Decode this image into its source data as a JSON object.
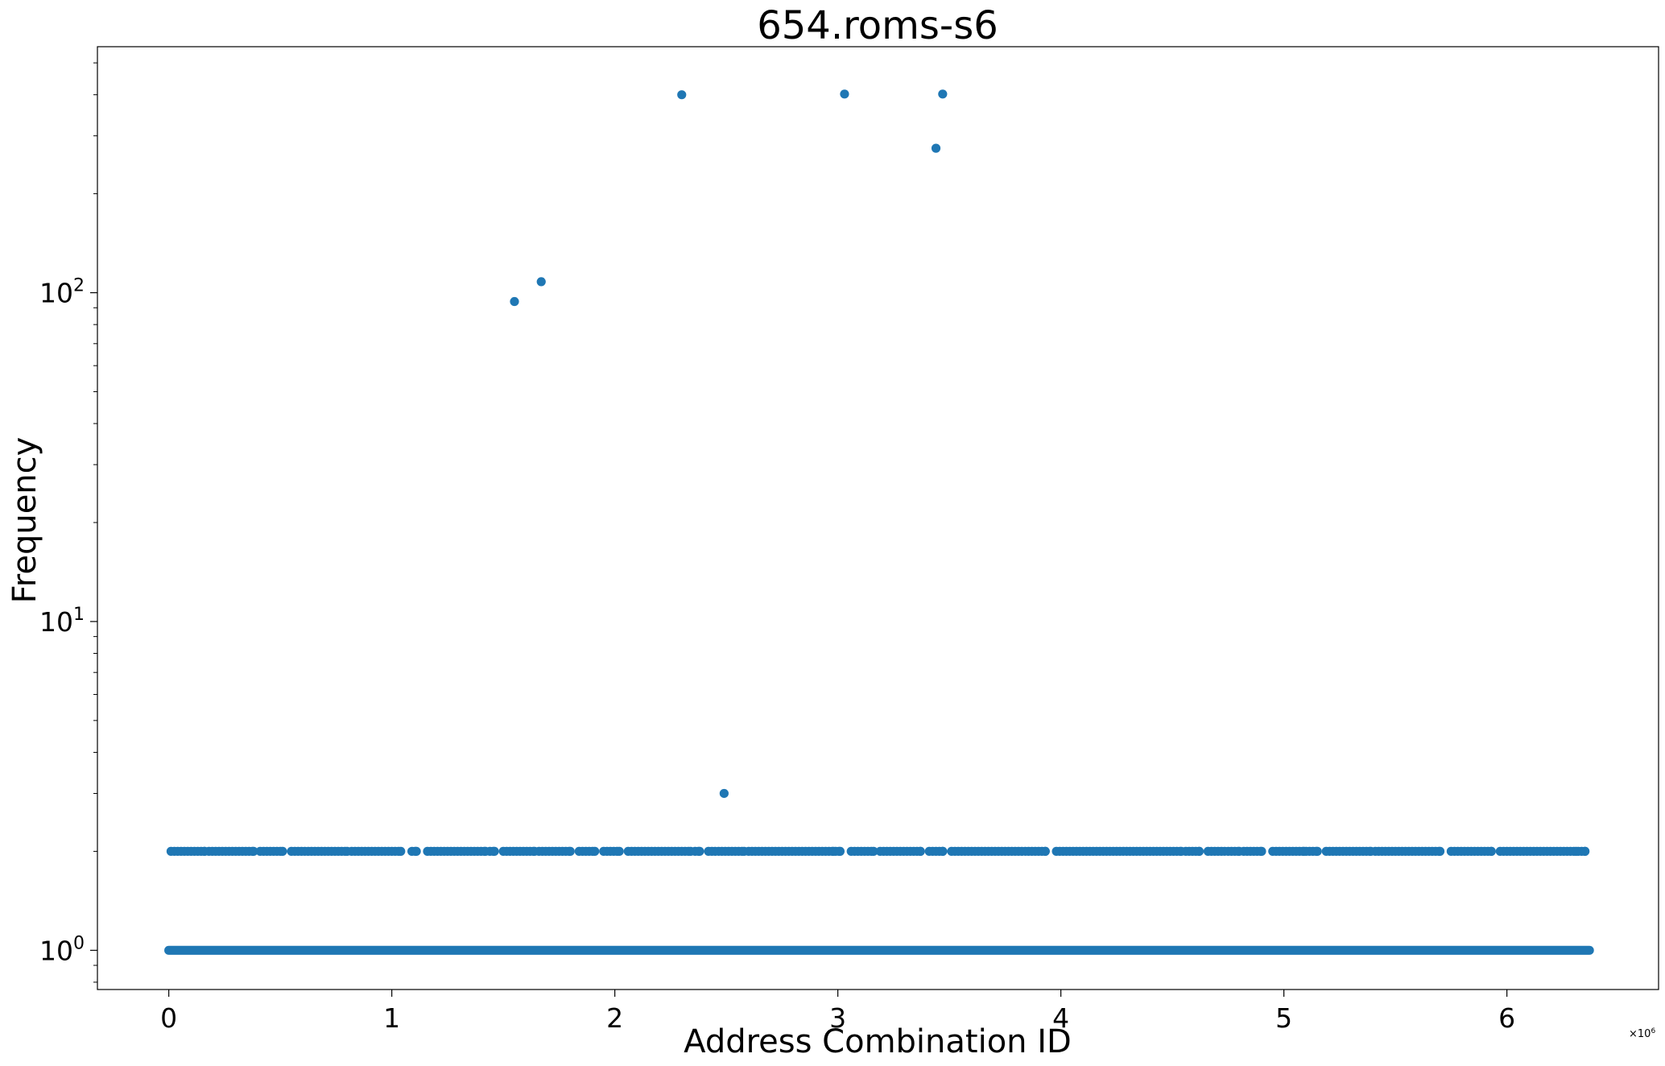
{
  "chart_data": {
    "type": "scatter",
    "title": "654.roms-s6",
    "xlabel": "Address Combination ID",
    "ylabel": "Frequency",
    "x_scale": "linear",
    "y_scale": "log",
    "x_offset_text": "×10^6",
    "xlim": [
      -320000,
      6680000
    ],
    "ylim": [
      0.76,
      560
    ],
    "x_ticks": [
      0,
      1000000,
      2000000,
      3000000,
      4000000,
      5000000,
      6000000
    ],
    "x_tick_labels": [
      "0",
      "1",
      "2",
      "3",
      "4",
      "5",
      "6"
    ],
    "y_ticks": [
      1,
      10,
      100
    ],
    "y_tick_labels": [
      {
        "base": "10",
        "exp": "0"
      },
      {
        "base": "10",
        "exp": "1"
      },
      {
        "base": "10",
        "exp": "2"
      }
    ],
    "grid": false,
    "marker_color": "#1f77b4",
    "baseline_band": {
      "y": 1,
      "x_from": 0,
      "x_to": 6370000
    },
    "frequency_2_x_ranges": [
      [
        10000,
        160000
      ],
      [
        180000,
        380000
      ],
      [
        410000,
        510000
      ],
      [
        550000,
        800000
      ],
      [
        820000,
        1040000
      ],
      [
        1090000,
        1110000
      ],
      [
        1160000,
        1420000
      ],
      [
        1440000,
        1460000
      ],
      [
        1500000,
        1640000
      ],
      [
        1660000,
        1800000
      ],
      [
        1840000,
        1910000
      ],
      [
        1950000,
        2020000
      ],
      [
        2060000,
        2340000
      ],
      [
        2360000,
        2380000
      ],
      [
        2420000,
        2580000
      ],
      [
        2600000,
        2980000
      ],
      [
        2990000,
        3010000
      ],
      [
        3060000,
        3160000
      ],
      [
        3190000,
        3370000
      ],
      [
        3410000,
        3470000
      ],
      [
        3510000,
        3930000
      ],
      [
        3980000,
        4540000
      ],
      [
        4560000,
        4620000
      ],
      [
        4660000,
        4800000
      ],
      [
        4820000,
        4900000
      ],
      [
        4950000,
        5090000
      ],
      [
        5100000,
        5150000
      ],
      [
        5190000,
        5390000
      ],
      [
        5410000,
        5700000
      ],
      [
        5750000,
        5930000
      ],
      [
        5970000,
        6310000
      ],
      [
        6320000,
        6350000
      ]
    ],
    "points": [
      {
        "x": 1550000,
        "y": 94
      },
      {
        "x": 1670000,
        "y": 108
      },
      {
        "x": 2300000,
        "y": 400
      },
      {
        "x": 2490000,
        "y": 3
      },
      {
        "x": 3030000,
        "y": 402
      },
      {
        "x": 3440000,
        "y": 275
      },
      {
        "x": 3470000,
        "y": 402
      }
    ]
  }
}
